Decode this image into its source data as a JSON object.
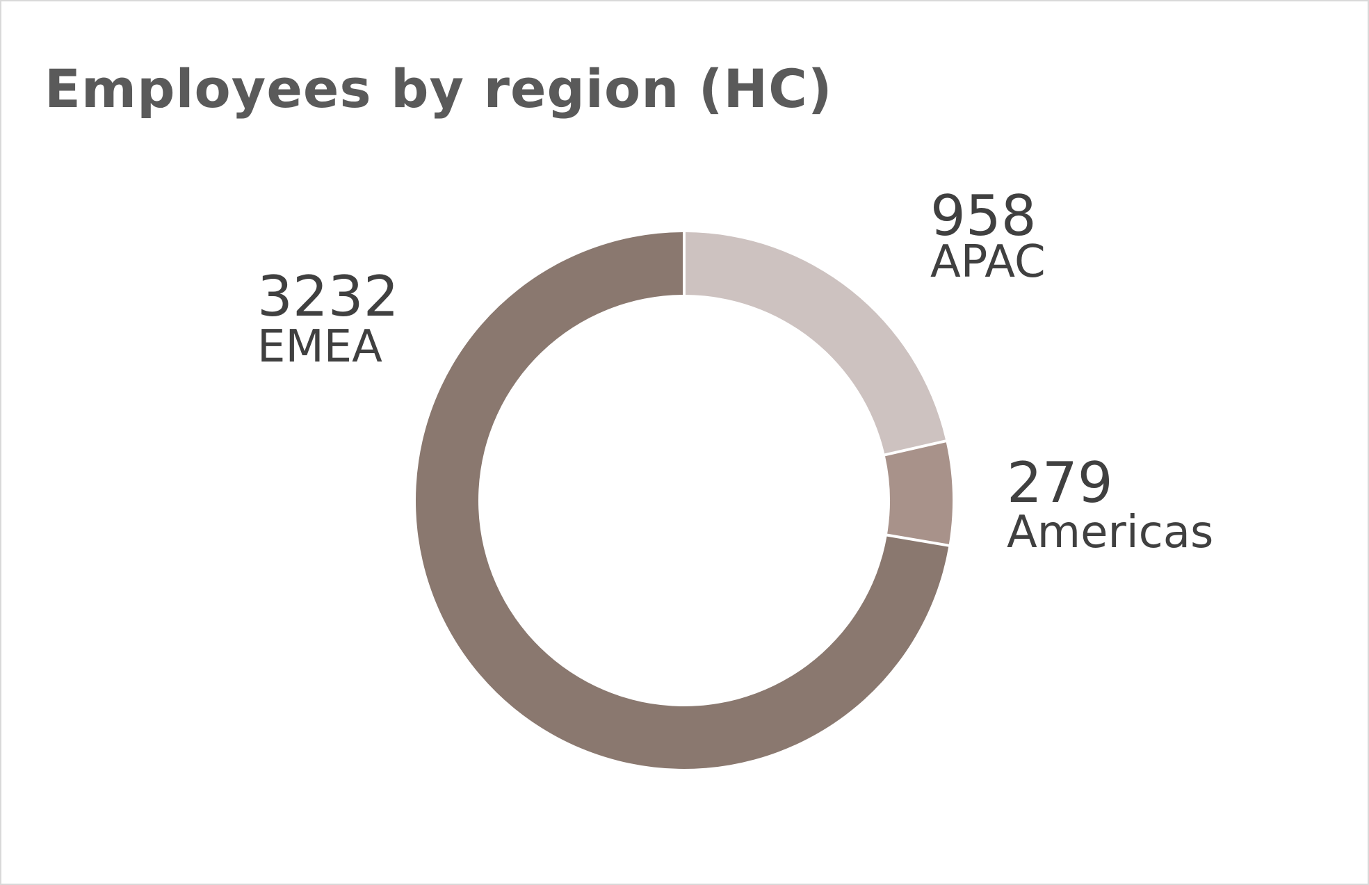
{
  "chart_data": {
    "type": "pie",
    "variant": "donut",
    "title": "Employees by region (HC)",
    "categories": [
      "APAC",
      "Americas",
      "EMEA"
    ],
    "values": [
      958,
      279,
      3232
    ],
    "colors": [
      "#cdc2c0",
      "#a8928a",
      "#8a786f"
    ],
    "start": "12 o'clock",
    "direction": "clockwise",
    "legend": "none",
    "data_labels": [
      {
        "value": "958",
        "name": "APAC"
      },
      {
        "value": "279",
        "name": "Americas"
      },
      {
        "value": "3232",
        "name": "EMEA"
      }
    ]
  }
}
